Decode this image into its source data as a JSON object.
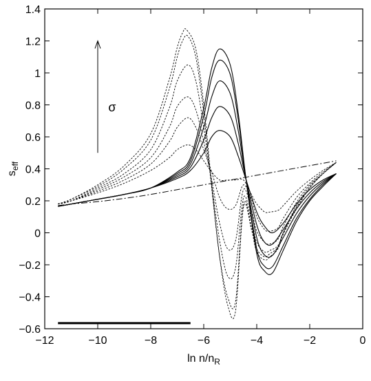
{
  "chart_data": {
    "type": "line",
    "xlabel": {
      "main": "ln n/n",
      "sub": "R"
    },
    "ylabel": {
      "main": "s",
      "sub": "eff"
    },
    "xlim": [
      -12,
      0
    ],
    "ylim": [
      -0.6,
      1.4
    ],
    "xticks": [
      -12,
      -10,
      -8,
      -6,
      -4,
      -2,
      0
    ],
    "xtick_labels": [
      "−12",
      "−10",
      "−8",
      "−6",
      "−4",
      "−2",
      "0"
    ],
    "yticks": [
      -0.6,
      -0.4,
      -0.2,
      0,
      0.2,
      0.4,
      0.6,
      0.8,
      1,
      1.2,
      1.4
    ],
    "ytick_labels": [
      "−0.6",
      "−0.4",
      "−0.2",
      "0",
      "0.2",
      "0.4",
      "0.6",
      "0.8",
      "1",
      "1.2",
      "1.4"
    ],
    "grid": false,
    "annotation": {
      "text": "σ",
      "arrow_from": [
        -10,
        0.5
      ],
      "arrow_to": [
        -10,
        1.2
      ]
    },
    "bar_segment": {
      "x": [
        -11.5,
        -6.5
      ],
      "y": -0.565
    },
    "series": [
      {
        "style": "dashdot",
        "x": [
          -11.5,
          -11,
          -10,
          -9,
          -8,
          -7,
          -6,
          -5,
          -4,
          -3,
          -2,
          -1
        ],
        "y": [
          0.17,
          0.18,
          0.195,
          0.215,
          0.24,
          0.27,
          0.3,
          0.33,
          0.36,
          0.39,
          0.42,
          0.45
        ]
      },
      {
        "style": "solid",
        "x": [
          -11.5,
          -11,
          -10,
          -9,
          -8,
          -7,
          -6.5,
          -6,
          -5.7,
          -5.4,
          -5,
          -4.7,
          -4.4,
          -4,
          -3.7,
          -3.4,
          -3,
          -2.5,
          -2,
          -1.5,
          -1
        ],
        "y": [
          0.165,
          0.18,
          0.21,
          0.24,
          0.28,
          0.34,
          0.39,
          0.5,
          0.6,
          0.64,
          0.6,
          0.48,
          0.33,
          0.13,
          0.04,
          0.0,
          0.06,
          0.18,
          0.27,
          0.33,
          0.37
        ]
      },
      {
        "style": "solid",
        "x": [
          -11.5,
          -11,
          -10,
          -9,
          -8,
          -7,
          -6.5,
          -6,
          -5.7,
          -5.4,
          -5,
          -4.7,
          -4.4,
          -4,
          -3.7,
          -3.4,
          -3,
          -2.5,
          -2,
          -1.5,
          -1
        ],
        "y": [
          0.165,
          0.18,
          0.21,
          0.24,
          0.28,
          0.35,
          0.41,
          0.58,
          0.72,
          0.79,
          0.73,
          0.56,
          0.33,
          0.05,
          -0.06,
          -0.07,
          0.02,
          0.15,
          0.25,
          0.32,
          0.37
        ]
      },
      {
        "style": "solid",
        "x": [
          -11.5,
          -11,
          -10,
          -9,
          -8,
          -7,
          -6.5,
          -6,
          -5.7,
          -5.4,
          -5,
          -4.7,
          -4.4,
          -4,
          -3.7,
          -3.4,
          -3,
          -2.5,
          -2,
          -1.5,
          -1
        ],
        "y": [
          0.165,
          0.18,
          0.21,
          0.24,
          0.28,
          0.36,
          0.43,
          0.66,
          0.85,
          0.95,
          0.87,
          0.64,
          0.33,
          -0.03,
          -0.14,
          -0.14,
          -0.03,
          0.12,
          0.23,
          0.31,
          0.37
        ]
      },
      {
        "style": "solid",
        "x": [
          -11.5,
          -11,
          -10,
          -9,
          -8,
          -7,
          -6.5,
          -6,
          -5.7,
          -5.4,
          -5,
          -4.7,
          -4.4,
          -4,
          -3.7,
          -3.4,
          -3,
          -2.5,
          -2,
          -1.5,
          -1
        ],
        "y": [
          0.165,
          0.18,
          0.21,
          0.24,
          0.28,
          0.37,
          0.45,
          0.73,
          0.97,
          1.08,
          0.99,
          0.71,
          0.33,
          -0.1,
          -0.21,
          -0.21,
          -0.08,
          0.09,
          0.21,
          0.3,
          0.37
        ]
      },
      {
        "style": "solid",
        "x": [
          -11.5,
          -11,
          -10,
          -9,
          -8,
          -7,
          -6.5,
          -6,
          -5.7,
          -5.4,
          -5,
          -4.7,
          -4.4,
          -4,
          -3.7,
          -3.4,
          -3,
          -2.5,
          -2,
          -1.5,
          -1
        ],
        "y": [
          0.165,
          0.18,
          0.21,
          0.24,
          0.28,
          0.38,
          0.47,
          0.78,
          1.03,
          1.15,
          1.05,
          0.75,
          0.33,
          -0.13,
          -0.24,
          -0.25,
          -0.11,
          0.07,
          0.2,
          0.29,
          0.37
        ]
      },
      {
        "style": "dotted",
        "x": [
          -11.5,
          -11,
          -10,
          -9,
          -8,
          -7.3,
          -7,
          -6.6,
          -6.3,
          -6,
          -5.7,
          -5.4,
          -5.1,
          -4.8,
          -4.5,
          -4.2,
          -4,
          -3.7,
          -3.5,
          -3.2,
          -3,
          -2.5,
          -2,
          -1.5,
          -1
        ],
        "y": [
          0.18,
          0.2,
          0.25,
          0.31,
          0.39,
          0.47,
          0.52,
          0.55,
          0.52,
          0.45,
          0.38,
          0.33,
          0.33,
          0.33,
          0.33,
          0.24,
          0.18,
          0.13,
          0.13,
          0.14,
          0.17,
          0.26,
          0.33,
          0.39,
          0.44
        ]
      },
      {
        "style": "dotted",
        "x": [
          -11.5,
          -11,
          -10,
          -9,
          -8,
          -7.3,
          -7,
          -6.6,
          -6.3,
          -6,
          -5.7,
          -5.4,
          -5.1,
          -4.8,
          -4.5,
          -4.2,
          -4,
          -3.7,
          -3.5,
          -3.2,
          -3,
          -2.5,
          -2,
          -1.5,
          -1
        ],
        "y": [
          0.18,
          0.2,
          0.26,
          0.33,
          0.43,
          0.57,
          0.66,
          0.72,
          0.66,
          0.52,
          0.38,
          0.22,
          0.15,
          0.17,
          0.3,
          0.21,
          0.1,
          0.02,
          0.01,
          0.03,
          0.09,
          0.22,
          0.31,
          0.38,
          0.44
        ]
      },
      {
        "style": "dotted",
        "x": [
          -11.5,
          -11,
          -10,
          -9,
          -8,
          -7.3,
          -7,
          -6.6,
          -6.3,
          -6,
          -5.7,
          -5.4,
          -5.1,
          -4.8,
          -4.5,
          -4.2,
          -4,
          -3.7,
          -3.5,
          -3.2,
          -3,
          -2.5,
          -2,
          -1.5,
          -1
        ],
        "y": [
          0.18,
          0.2,
          0.27,
          0.35,
          0.47,
          0.66,
          0.79,
          0.85,
          0.77,
          0.57,
          0.33,
          0.06,
          -0.1,
          -0.05,
          0.27,
          0.14,
          0.01,
          -0.06,
          -0.07,
          -0.04,
          0.04,
          0.19,
          0.3,
          0.37,
          0.44
        ]
      },
      {
        "style": "dotted",
        "x": [
          -11.5,
          -11,
          -10,
          -9,
          -8,
          -7.3,
          -7,
          -6.6,
          -6.3,
          -6,
          -5.7,
          -5.4,
          -5.1,
          -4.8,
          -4.5,
          -4.2,
          -4,
          -3.7,
          -3.5,
          -3.2,
          -3,
          -2.5,
          -2,
          -1.5,
          -1
        ],
        "y": [
          0.18,
          0.2,
          0.28,
          0.37,
          0.52,
          0.78,
          0.95,
          1.05,
          0.95,
          0.66,
          0.3,
          -0.05,
          -0.27,
          -0.22,
          0.22,
          0.08,
          -0.06,
          -0.12,
          -0.11,
          -0.08,
          0.0,
          0.17,
          0.29,
          0.37,
          0.44
        ]
      },
      {
        "style": "dotted",
        "x": [
          -11.5,
          -11,
          -10,
          -9,
          -8,
          -7.3,
          -7,
          -6.8,
          -6.6,
          -6.3,
          -6,
          -5.7,
          -5.4,
          -5.1,
          -4.8,
          -4.5,
          -4.2,
          -4,
          -3.7,
          -3.5,
          -3.2,
          -3,
          -2.5,
          -2,
          -1.5,
          -1
        ],
        "y": [
          0.18,
          0.21,
          0.29,
          0.4,
          0.58,
          0.9,
          1.1,
          1.2,
          1.23,
          1.1,
          0.75,
          0.28,
          -0.15,
          -0.4,
          -0.43,
          0.18,
          0.04,
          -0.1,
          -0.15,
          -0.13,
          -0.09,
          0.0,
          0.16,
          0.28,
          0.37,
          0.44
        ]
      },
      {
        "style": "dotted",
        "x": [
          -11.5,
          -11,
          -10,
          -9,
          -8,
          -7.3,
          -7,
          -6.8,
          -6.65,
          -6.3,
          -6,
          -5.7,
          -5.4,
          -5.1,
          -4.8,
          -4.5,
          -4.2,
          -4,
          -3.7,
          -3.5,
          -3.2,
          -3,
          -2.5,
          -2,
          -1.5,
          -1
        ],
        "y": [
          0.18,
          0.21,
          0.3,
          0.42,
          0.62,
          0.96,
          1.16,
          1.25,
          1.27,
          1.15,
          0.8,
          0.3,
          -0.15,
          -0.45,
          -0.49,
          0.16,
          0.02,
          -0.12,
          -0.17,
          -0.15,
          -0.1,
          -0.01,
          0.15,
          0.28,
          0.37,
          0.44
        ]
      }
    ]
  }
}
